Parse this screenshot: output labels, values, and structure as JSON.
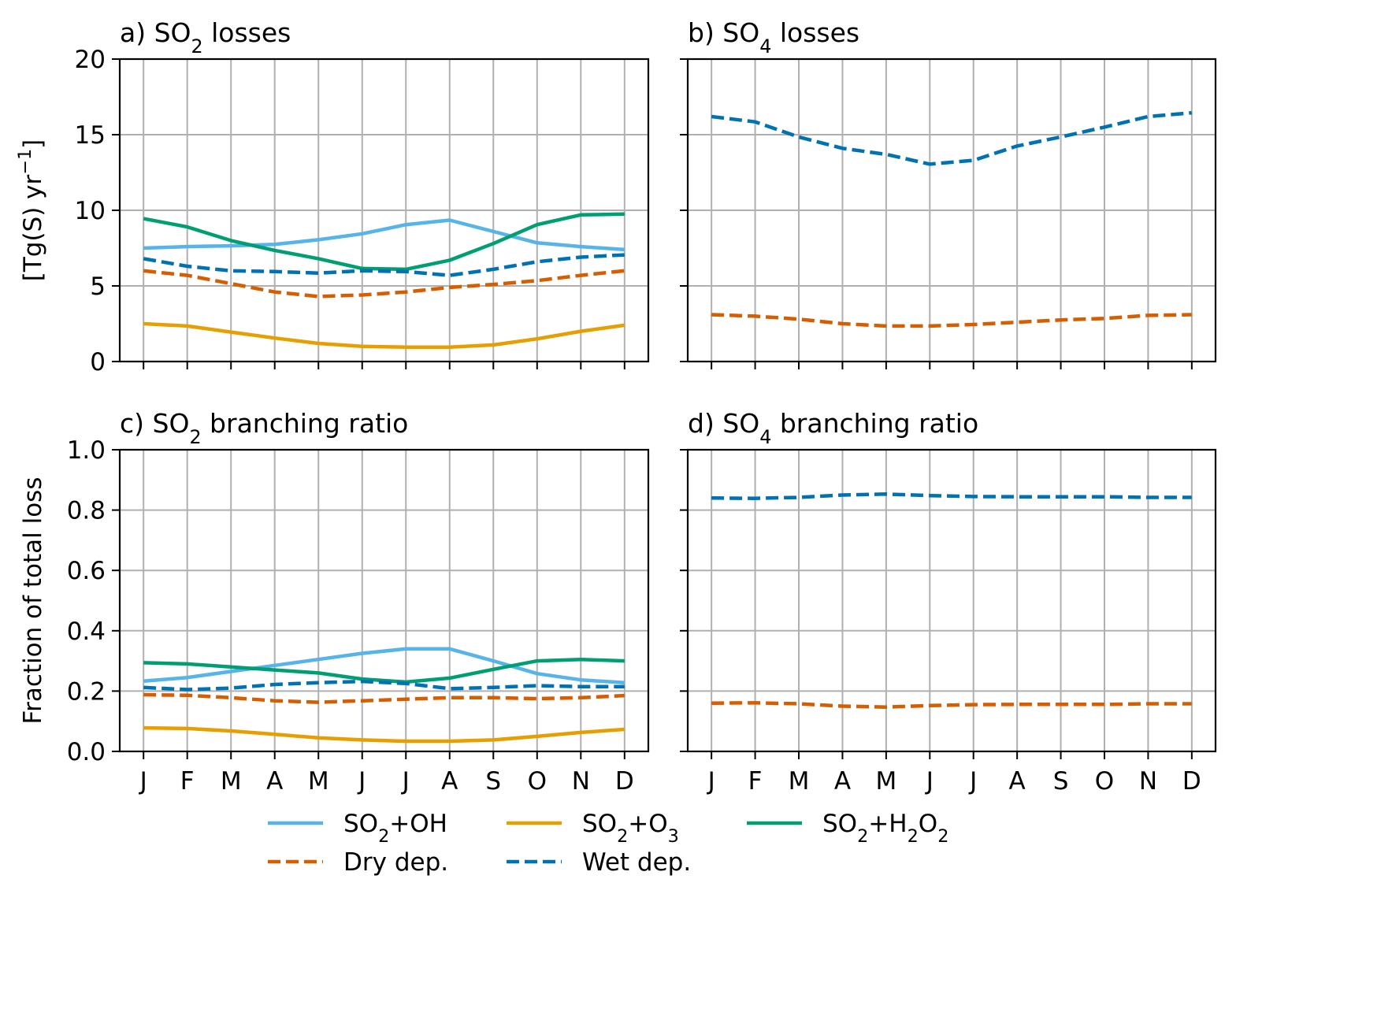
{
  "chart_data": [
    {
      "id": "a",
      "type": "line",
      "title": "a) SO2 losses",
      "ylabel": "[Tg(S) yr−1]",
      "ylim": [
        0,
        20
      ],
      "yticks": [
        0,
        5,
        10,
        15,
        20
      ],
      "ytick_labels": [
        "0",
        "5",
        "10",
        "15",
        "20"
      ],
      "categories": [
        "J",
        "F",
        "M",
        "A",
        "M",
        "J",
        "J",
        "A",
        "S",
        "O",
        "N",
        "D"
      ],
      "show_xtick_labels": false,
      "grid": true,
      "series": [
        {
          "name": "SO2+OH",
          "color": "#56B4E9",
          "dash": false,
          "values": [
            7.5,
            7.6,
            7.65,
            7.75,
            8.05,
            8.45,
            9.05,
            9.35,
            8.6,
            7.85,
            7.6,
            7.4
          ]
        },
        {
          "name": "SO2+O3",
          "color": "#E69F00",
          "dash": false,
          "values": [
            2.5,
            2.35,
            1.95,
            1.55,
            1.2,
            1.0,
            0.95,
            0.95,
            1.1,
            1.5,
            2.0,
            2.4
          ]
        },
        {
          "name": "SO2+H2O2",
          "color": "#009E73",
          "dash": false,
          "values": [
            9.45,
            8.9,
            8.0,
            7.35,
            6.8,
            6.15,
            6.1,
            6.7,
            7.8,
            9.05,
            9.7,
            9.75
          ]
        },
        {
          "name": "Dry dep.",
          "color": "#D55E00",
          "dash": true,
          "values": [
            6.0,
            5.7,
            5.15,
            4.6,
            4.3,
            4.4,
            4.6,
            4.9,
            5.1,
            5.35,
            5.7,
            6.0
          ]
        },
        {
          "name": "Wet dep.",
          "color": "#0072B2",
          "dash": true,
          "values": [
            6.8,
            6.3,
            6.0,
            5.95,
            5.85,
            6.0,
            5.95,
            5.7,
            6.1,
            6.6,
            6.9,
            7.05
          ]
        }
      ]
    },
    {
      "id": "b",
      "type": "line",
      "title": "b) SO4 losses",
      "ylabel": "",
      "ylim": [
        0,
        20
      ],
      "yticks": [
        0,
        5,
        10,
        15,
        20
      ],
      "ytick_labels": [],
      "categories": [
        "J",
        "F",
        "M",
        "A",
        "M",
        "J",
        "J",
        "A",
        "S",
        "O",
        "N",
        "D"
      ],
      "show_xtick_labels": false,
      "grid": true,
      "series": [
        {
          "name": "Dry dep.",
          "color": "#D55E00",
          "dash": true,
          "values": [
            3.1,
            3.0,
            2.8,
            2.5,
            2.35,
            2.35,
            2.45,
            2.6,
            2.75,
            2.85,
            3.05,
            3.1
          ]
        },
        {
          "name": "Wet dep.",
          "color": "#0072B2",
          "dash": true,
          "values": [
            16.2,
            15.85,
            14.85,
            14.1,
            13.7,
            13.05,
            13.3,
            14.25,
            14.85,
            15.5,
            16.2,
            16.45
          ]
        }
      ]
    },
    {
      "id": "c",
      "type": "line",
      "title": "c) SO2 branching ratio",
      "ylabel": "Fraction of total loss",
      "ylim": [
        0,
        1
      ],
      "yticks": [
        0,
        0.2,
        0.4,
        0.6,
        0.8,
        1.0
      ],
      "ytick_labels": [
        "0.0",
        "0.2",
        "0.4",
        "0.6",
        "0.8",
        "1.0"
      ],
      "categories": [
        "J",
        "F",
        "M",
        "A",
        "M",
        "J",
        "J",
        "A",
        "S",
        "O",
        "N",
        "D"
      ],
      "show_xtick_labels": true,
      "grid": true,
      "series": [
        {
          "name": "SO2+OH",
          "color": "#56B4E9",
          "dash": false,
          "values": [
            0.233,
            0.245,
            0.265,
            0.285,
            0.305,
            0.325,
            0.34,
            0.34,
            0.3,
            0.258,
            0.237,
            0.228
          ]
        },
        {
          "name": "SO2+O3",
          "color": "#E69F00",
          "dash": false,
          "values": [
            0.078,
            0.076,
            0.068,
            0.057,
            0.045,
            0.038,
            0.034,
            0.034,
            0.038,
            0.05,
            0.063,
            0.073
          ]
        },
        {
          "name": "SO2+H2O2",
          "color": "#009E73",
          "dash": false,
          "values": [
            0.294,
            0.29,
            0.28,
            0.27,
            0.26,
            0.24,
            0.23,
            0.243,
            0.272,
            0.3,
            0.305,
            0.3
          ]
        },
        {
          "name": "Dry dep.",
          "color": "#D55E00",
          "dash": true,
          "values": [
            0.188,
            0.186,
            0.178,
            0.168,
            0.163,
            0.168,
            0.173,
            0.178,
            0.178,
            0.175,
            0.178,
            0.185
          ]
        },
        {
          "name": "Wet dep.",
          "color": "#0072B2",
          "dash": true,
          "values": [
            0.212,
            0.205,
            0.21,
            0.222,
            0.228,
            0.232,
            0.225,
            0.208,
            0.212,
            0.218,
            0.215,
            0.215
          ]
        }
      ]
    },
    {
      "id": "d",
      "type": "line",
      "title": "d) SO4 branching ratio",
      "ylabel": "",
      "ylim": [
        0,
        1
      ],
      "yticks": [
        0,
        0.2,
        0.4,
        0.6,
        0.8,
        1.0
      ],
      "ytick_labels": [],
      "categories": [
        "J",
        "F",
        "M",
        "A",
        "M",
        "J",
        "J",
        "A",
        "S",
        "O",
        "N",
        "D"
      ],
      "show_xtick_labels": true,
      "grid": true,
      "series": [
        {
          "name": "Dry dep.",
          "color": "#D55E00",
          "dash": true,
          "values": [
            0.16,
            0.161,
            0.158,
            0.15,
            0.147,
            0.152,
            0.155,
            0.156,
            0.156,
            0.156,
            0.158,
            0.158
          ]
        },
        {
          "name": "Wet dep.",
          "color": "#0072B2",
          "dash": true,
          "values": [
            0.84,
            0.839,
            0.842,
            0.85,
            0.853,
            0.848,
            0.845,
            0.844,
            0.844,
            0.844,
            0.842,
            0.842
          ]
        }
      ]
    }
  ],
  "legend": {
    "placement": "bottom-center",
    "entries": [
      {
        "label": "SO2+OH",
        "color": "#56B4E9",
        "dash": false
      },
      {
        "label": "SO2+O3",
        "color": "#E69F00",
        "dash": false
      },
      {
        "label": "SO2+H2O2",
        "color": "#009E73",
        "dash": false
      },
      {
        "label": "Dry dep.",
        "color": "#D55E00",
        "dash": true
      },
      {
        "label": "Wet dep.",
        "color": "#0072B2",
        "dash": true
      }
    ]
  }
}
